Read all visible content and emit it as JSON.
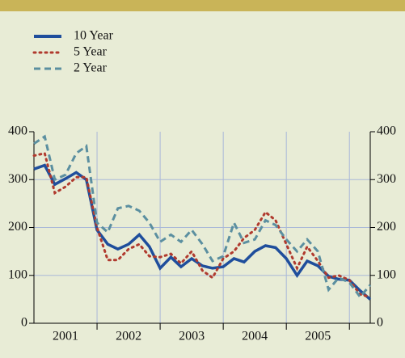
{
  "chart_data": {
    "type": "line",
    "x": [
      2001,
      2001.17,
      2001.33,
      2001.5,
      2001.67,
      2001.83,
      2002,
      2002.17,
      2002.33,
      2002.5,
      2002.67,
      2002.83,
      2003,
      2003.17,
      2003.33,
      2003.5,
      2003.67,
      2003.83,
      2004,
      2004.17,
      2004.33,
      2004.5,
      2004.67,
      2004.83,
      2005,
      2005.17,
      2005.33,
      2005.5,
      2005.67,
      2005.83,
      2006,
      2006.17,
      2006.33
    ],
    "series": [
      {
        "name": "10 Year",
        "color": "#1f4e9c",
        "dash": "solid",
        "values": [
          322,
          330,
          290,
          302,
          315,
          300,
          195,
          165,
          155,
          165,
          185,
          160,
          115,
          138,
          118,
          135,
          120,
          115,
          118,
          135,
          128,
          150,
          162,
          158,
          135,
          100,
          130,
          120,
          98,
          92,
          90,
          68,
          50
        ]
      },
      {
        "name": "5 Year",
        "color": "#b03a2e",
        "dash": "dotted",
        "values": [
          350,
          355,
          272,
          285,
          305,
          305,
          200,
          132,
          132,
          155,
          165,
          140,
          138,
          145,
          125,
          150,
          110,
          95,
          135,
          150,
          178,
          195,
          232,
          215,
          165,
          115,
          160,
          130,
          95,
          100,
          90,
          60,
          55
        ]
      },
      {
        "name": "2 Year",
        "color": "#5b8fa0",
        "dash": "dashed",
        "values": [
          375,
          390,
          300,
          310,
          355,
          370,
          210,
          190,
          240,
          245,
          235,
          210,
          170,
          185,
          170,
          195,
          165,
          130,
          140,
          210,
          168,
          175,
          215,
          205,
          175,
          150,
          175,
          150,
          70,
          95,
          85,
          55,
          80
        ]
      }
    ],
    "xlim": [
      2001,
      2006.33
    ],
    "xticks": [
      {
        "value": 2001.5,
        "label": "2001"
      },
      {
        "value": 2002.5,
        "label": "2002"
      },
      {
        "value": 2003.5,
        "label": "2003"
      },
      {
        "value": 2004.5,
        "label": "2004"
      },
      {
        "value": 2005.5,
        "label": "2005"
      }
    ],
    "xgrid": [
      2002,
      2003,
      2004,
      2005,
      2006
    ],
    "ylim": [
      0,
      400
    ],
    "yticks": [
      0,
      100,
      200,
      300,
      400
    ],
    "y2lim": [
      0,
      400
    ],
    "y2ticks": [
      0,
      100,
      200,
      300,
      400
    ],
    "grid": true
  }
}
